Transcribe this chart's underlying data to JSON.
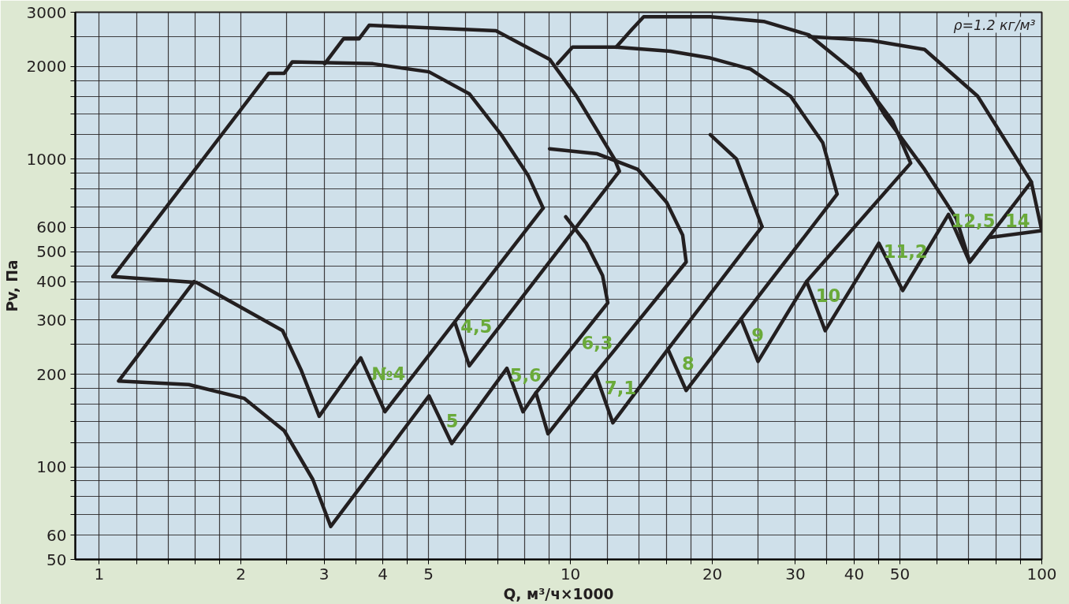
{
  "chart_data": {
    "type": "line",
    "xlabel": "Q, м³/ч×1000",
    "ylabel": "Pv, Па",
    "log": "xy",
    "grid": true,
    "marker": "none",
    "line_style": "solid",
    "xlim": [
      0.89,
      100
    ],
    "ylim": [
      50,
      3000
    ],
    "xticks": [
      1,
      {
        "value": 1.2,
        "label": null
      },
      {
        "value": 1.4,
        "label": null
      },
      {
        "value": 1.6,
        "label": null
      },
      {
        "value": 1.8,
        "label": null
      },
      2,
      {
        "value": 2.5,
        "label": null
      },
      3,
      {
        "value": 3.5,
        "label": null
      },
      4,
      {
        "value": 4.5,
        "label": null
      },
      5,
      {
        "value": 6,
        "label": null
      },
      {
        "value": 7,
        "label": null
      },
      {
        "value": 8,
        "label": null
      },
      {
        "value": 9,
        "label": null
      },
      10,
      {
        "value": 12,
        "label": null
      },
      {
        "value": 14,
        "label": null
      },
      {
        "value": 16,
        "label": null
      },
      {
        "value": 18,
        "label": null
      },
      20,
      {
        "value": 25,
        "label": null
      },
      30,
      {
        "value": 35,
        "label": null
      },
      40,
      {
        "value": 45,
        "label": null
      },
      50,
      {
        "value": 60,
        "label": null
      },
      {
        "value": 70,
        "label": null
      },
      {
        "value": 80,
        "label": null
      },
      {
        "value": 90,
        "label": null
      },
      100
    ],
    "yticks": [
      50,
      60,
      {
        "value": 70,
        "label": null
      },
      {
        "value": 80,
        "label": null
      },
      {
        "value": 90,
        "label": null
      },
      100,
      {
        "value": 120,
        "label": null
      },
      {
        "value": 140,
        "label": null
      },
      {
        "value": 160,
        "label": null
      },
      {
        "value": 180,
        "label": null
      },
      200,
      {
        "value": 250,
        "label": null
      },
      300,
      {
        "value": 350,
        "label": null
      },
      400,
      {
        "value": 450,
        "label": null
      },
      500,
      600,
      {
        "value": 700,
        "label": null
      },
      {
        "value": 800,
        "label": null
      },
      {
        "value": 900,
        "label": null
      },
      1000,
      {
        "value": 1200,
        "label": null
      },
      {
        "value": 1400,
        "label": null
      },
      {
        "value": 1600,
        "label": null
      },
      {
        "value": 1800,
        "label": null
      },
      2000,
      {
        "value": 2500,
        "label": null
      },
      3000
    ],
    "series": [
      {
        "color": "#231f20",
        "x": [
          1.59,
          1.1,
          1.55,
          2.03,
          2.47,
          2.84,
          3.1,
          5.01,
          5.6,
          7.33,
          7.93,
          8.45,
          8.96,
          11.3,
          12.3,
          16.1,
          17.6,
          23.0,
          25.0,
          31.7,
          34.7,
          45.1,
          50.7,
          63.4,
          70.3,
          95.0,
          73.1,
          56.4,
          43.4,
          32.1
        ],
        "values": [
          400,
          190,
          185,
          167,
          131,
          91,
          64,
          170,
          119,
          209,
          151,
          174,
          128,
          201,
          139,
          241,
          177,
          302,
          220,
          400,
          277,
          533,
          374,
          661,
          463,
          843,
          1600,
          2270,
          2430,
          2500
        ]
      },
      {
        "color": "#231f20",
        "x": [
          1.07,
          2.29,
          2.47,
          2.57,
          3.81,
          5.01,
          6.1,
          7.13,
          8.13,
          8.75
        ],
        "values": [
          415,
          1900,
          1900,
          2070,
          2040,
          1920,
          1630,
          1200,
          885,
          693
        ]
      },
      {
        "color": "#231f20",
        "x": [
          1.07,
          1.61,
          2.45,
          2.68,
          2.93,
          3.59,
          4.04,
          8.75
        ],
        "values": [
          415,
          397,
          277,
          207,
          146,
          226,
          151,
          693
        ]
      },
      {
        "color": "#231f20",
        "x": [
          3.01,
          3.3,
          3.56,
          3.74,
          6.95,
          9.03,
          10.3,
          12.4,
          12.7,
          6.1,
          5.69
        ],
        "values": [
          2040,
          2460,
          2460,
          2720,
          2610,
          2110,
          1600,
          1000,
          913,
          213,
          294
        ]
      },
      {
        "color": "#231f20",
        "x": [
          9.77,
          10.8,
          11.7,
          12.0,
          8.45
        ],
        "values": [
          649,
          533,
          418,
          341,
          174
        ]
      },
      {
        "color": "#231f20",
        "x": [
          9.03,
          11.4,
          13.9,
          16.0,
          17.3,
          17.6,
          11.3
        ],
        "values": [
          1080,
          1040,
          925,
          723,
          566,
          463,
          201
        ]
      },
      {
        "color": "#231f20",
        "x": [
          9.39,
          10.1,
          12.5,
          16.3,
          19.8,
          24.1,
          29.3,
          34.3,
          36.8,
          23.0
        ],
        "values": [
          2040,
          2310,
          2310,
          2240,
          2130,
          1960,
          1600,
          1130,
          769,
          302
        ]
      },
      {
        "color": "#231f20",
        "x": [
          19.8,
          22.5,
          25.5
        ],
        "values": [
          1200,
          1000,
          603
        ]
      },
      {
        "color": "#231f20",
        "x": [
          16.1,
          25.5
        ],
        "values": [
          241,
          603
        ]
      },
      {
        "color": "#231f20",
        "x": [
          12.5,
          13.5,
          14.3,
          19.8,
          25.7,
          32.1,
          40.6,
          48.2,
          52.7,
          31.7
        ],
        "values": [
          2310,
          2640,
          2900,
          2900,
          2800,
          2530,
          1890,
          1330,
          970,
          400
        ]
      },
      {
        "color": "#231f20",
        "x": [
          41.2,
          46.4,
          56.4,
          65.9,
          70.3
        ],
        "values": [
          1890,
          1390,
          925,
          640,
          463
        ]
      },
      {
        "color": "#231f20",
        "x": [
          70.3,
          77.2,
          100
        ],
        "values": [
          463,
          556,
          585
        ]
      },
      {
        "color": "#231f20",
        "x": [
          95.0,
          100
        ],
        "values": [
          843,
          585
        ]
      }
    ],
    "annotations": [
      "№4",
      "4,5",
      "5",
      "5,6",
      "6,3",
      "7,1",
      "8",
      "9",
      "10",
      "11,2",
      "12,5",
      "14",
      "ρ=1.2 кг/м³"
    ]
  }
}
